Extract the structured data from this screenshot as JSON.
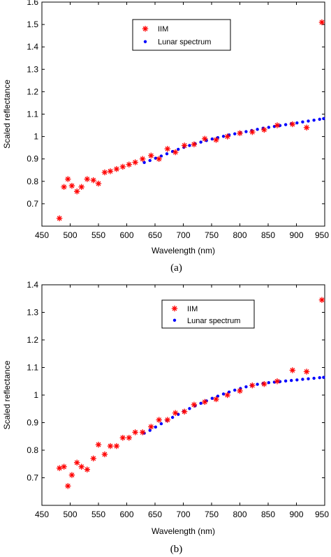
{
  "chart_data": [
    {
      "type": "scatter",
      "caption": "(a)",
      "xlabel": "Wavelength (nm)",
      "ylabel": "Scaled reflectance",
      "xlim": [
        450,
        950
      ],
      "ylim": [
        0.6,
        1.6
      ],
      "xticks": [
        "450",
        "500",
        "550",
        "600",
        "650",
        "700",
        "750",
        "800",
        "850",
        "900",
        "950"
      ],
      "yticks": [
        "0.7",
        "0.8",
        "0.9",
        "1",
        "1.1",
        "1.2",
        "1.3",
        "1.4",
        "1.5",
        "1.6"
      ],
      "grid": false,
      "legend_position": "top-center",
      "series": [
        {
          "name": "IIM",
          "marker": "asterisk",
          "color": "#ff0000",
          "points": [
            [
              481,
              0.635
            ],
            [
              489,
              0.775
            ],
            [
              496,
              0.81
            ],
            [
              503,
              0.78
            ],
            [
              512,
              0.755
            ],
            [
              520,
              0.775
            ],
            [
              530,
              0.81
            ],
            [
              541,
              0.805
            ],
            [
              550,
              0.79
            ],
            [
              561,
              0.84
            ],
            [
              571,
              0.845
            ],
            [
              582,
              0.855
            ],
            [
              593,
              0.865
            ],
            [
              604,
              0.875
            ],
            [
              615,
              0.885
            ],
            [
              628,
              0.9
            ],
            [
              643,
              0.915
            ],
            [
              657,
              0.9
            ],
            [
              672,
              0.945
            ],
            [
              686,
              0.93
            ],
            [
              702,
              0.96
            ],
            [
              719,
              0.965
            ],
            [
              738,
              0.99
            ],
            [
              758,
              0.985
            ],
            [
              778,
              1.0
            ],
            [
              800,
              1.015
            ],
            [
              822,
              1.02
            ],
            [
              843,
              1.03
            ],
            [
              866,
              1.05
            ],
            [
              893,
              1.055
            ],
            [
              918,
              1.04
            ],
            [
              945,
              1.51
            ]
          ]
        },
        {
          "name": "Lunar spectrum",
          "marker": "dot",
          "color": "#0000ff",
          "points": [
            [
              631,
              0.884
            ],
            [
              641,
              0.893
            ],
            [
              651,
              0.903
            ],
            [
              661,
              0.913
            ],
            [
              671,
              0.923
            ],
            [
              681,
              0.933
            ],
            [
              691,
              0.943
            ],
            [
              701,
              0.952
            ],
            [
              711,
              0.96
            ],
            [
              721,
              0.968
            ],
            [
              731,
              0.975
            ],
            [
              741,
              0.982
            ],
            [
              751,
              0.989
            ],
            [
              761,
              0.995
            ],
            [
              771,
              1.001
            ],
            [
              781,
              1.007
            ],
            [
              791,
              1.012
            ],
            [
              801,
              1.017
            ],
            [
              811,
              1.022
            ],
            [
              821,
              1.027
            ],
            [
              831,
              1.032
            ],
            [
              841,
              1.037
            ],
            [
              851,
              1.041
            ],
            [
              861,
              1.045
            ],
            [
              871,
              1.049
            ],
            [
              881,
              1.053
            ],
            [
              891,
              1.057
            ],
            [
              901,
              1.061
            ],
            [
              911,
              1.065
            ],
            [
              921,
              1.069
            ],
            [
              931,
              1.073
            ],
            [
              941,
              1.077
            ],
            [
              948,
              1.08
            ]
          ]
        }
      ]
    },
    {
      "type": "scatter",
      "caption": "(b)",
      "xlabel": "Wavelength (nm)",
      "ylabel": "Scaled reflectance",
      "xlim": [
        450,
        950
      ],
      "ylim": [
        0.6,
        1.4
      ],
      "xticks": [
        "450",
        "500",
        "550",
        "600",
        "650",
        "700",
        "750",
        "800",
        "850",
        "900",
        "950"
      ],
      "yticks": [
        "0.7",
        "0.8",
        "0.9",
        "1",
        "1.1",
        "1.2",
        "1.3",
        "1.4"
      ],
      "grid": false,
      "legend_position": "top-right",
      "series": [
        {
          "name": "IIM",
          "marker": "asterisk",
          "color": "#ff0000",
          "points": [
            [
              481,
              0.735
            ],
            [
              489,
              0.74
            ],
            [
              496,
              0.67
            ],
            [
              503,
              0.71
            ],
            [
              512,
              0.755
            ],
            [
              520,
              0.74
            ],
            [
              530,
              0.73
            ],
            [
              541,
              0.77
            ],
            [
              550,
              0.82
            ],
            [
              561,
              0.785
            ],
            [
              571,
              0.815
            ],
            [
              582,
              0.815
            ],
            [
              593,
              0.845
            ],
            [
              604,
              0.845
            ],
            [
              615,
              0.865
            ],
            [
              628,
              0.865
            ],
            [
              643,
              0.885
            ],
            [
              657,
              0.91
            ],
            [
              672,
              0.91
            ],
            [
              686,
              0.935
            ],
            [
              702,
              0.94
            ],
            [
              719,
              0.965
            ],
            [
              738,
              0.975
            ],
            [
              758,
              0.985
            ],
            [
              778,
              1.0
            ],
            [
              800,
              1.015
            ],
            [
              822,
              1.035
            ],
            [
              843,
              1.04
            ],
            [
              866,
              1.05
            ],
            [
              893,
              1.09
            ],
            [
              918,
              1.085
            ],
            [
              945,
              1.345
            ]
          ]
        },
        {
          "name": "Lunar spectrum",
          "marker": "dot",
          "color": "#0000ff",
          "points": [
            [
              631,
              0.862
            ],
            [
              641,
              0.872
            ],
            [
              651,
              0.884
            ],
            [
              661,
              0.896
            ],
            [
              671,
              0.908
            ],
            [
              681,
              0.919
            ],
            [
              691,
              0.93
            ],
            [
              701,
              0.941
            ],
            [
              711,
              0.951
            ],
            [
              721,
              0.961
            ],
            [
              731,
              0.97
            ],
            [
              741,
              0.979
            ],
            [
              751,
              0.988
            ],
            [
              761,
              0.996
            ],
            [
              771,
              1.004
            ],
            [
              781,
              1.011
            ],
            [
              791,
              1.018
            ],
            [
              801,
              1.024
            ],
            [
              811,
              1.03
            ],
            [
              821,
              1.035
            ],
            [
              831,
              1.039
            ],
            [
              841,
              1.042
            ],
            [
              851,
              1.045
            ],
            [
              861,
              1.047
            ],
            [
              871,
              1.049
            ],
            [
              881,
              1.051
            ],
            [
              891,
              1.053
            ],
            [
              901,
              1.055
            ],
            [
              911,
              1.057
            ],
            [
              921,
              1.059
            ],
            [
              931,
              1.061
            ],
            [
              941,
              1.063
            ],
            [
              948,
              1.064
            ]
          ]
        }
      ]
    }
  ]
}
